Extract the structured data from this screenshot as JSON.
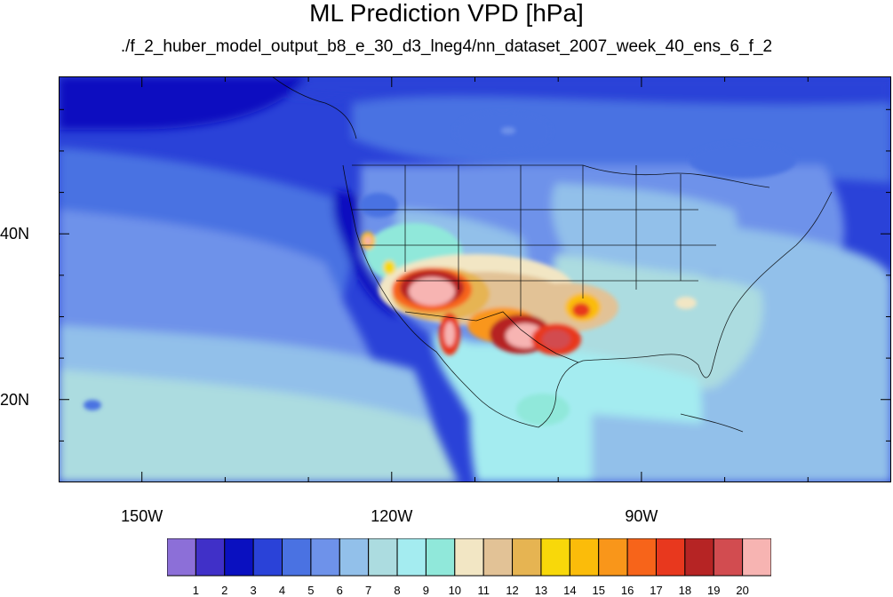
{
  "title": "ML Prediction VPD [hPa]",
  "subtitle": "./f_2_huber_model_output_b8_e_30_d3_lneg4/nn_dataset_2007_week_40_ens_6_f_2",
  "lat_labels": [
    {
      "text": "40N",
      "lat": 40
    },
    {
      "text": "20N",
      "lat": 20
    }
  ],
  "lon_labels": [
    {
      "text": "150W",
      "lon": -150
    },
    {
      "text": "120W",
      "lon": -120
    },
    {
      "text": "90W",
      "lon": -90
    }
  ],
  "colorbar": {
    "colors": [
      "#8c6fd8",
      "#4030c8",
      "#0a10c0",
      "#2a42d8",
      "#4a72e2",
      "#6e92ea",
      "#92c0ea",
      "#acdce0",
      "#a4ecf0",
      "#90e8da",
      "#f2e6c4",
      "#e2c296",
      "#e6b452",
      "#f8d80a",
      "#fbbc0a",
      "#f9961a",
      "#f7641a",
      "#e8381e",
      "#b62424",
      "#d24c50",
      "#f7b4b2"
    ],
    "labels": [
      "1",
      "2",
      "3",
      "4",
      "5",
      "6",
      "7",
      "8",
      "9",
      "10",
      "11",
      "12",
      "13",
      "14",
      "15",
      "16",
      "17",
      "18",
      "19",
      "20"
    ]
  },
  "chart_data": {
    "type": "heatmap",
    "title": "ML Prediction VPD [hPa]",
    "subtitle": "./f_2_huber_model_output_b8_e_30_d3_lneg4/nn_dataset_2007_week_40_ens_6_f_2",
    "lon_range": [
      -160,
      -60
    ],
    "lat_range": [
      10,
      59
    ],
    "colorbar_levels": [
      1,
      2,
      3,
      4,
      5,
      6,
      7,
      8,
      9,
      10,
      11,
      12,
      13,
      14,
      15,
      16,
      17,
      18,
      19,
      20
    ],
    "regions": [
      {
        "level": 3,
        "lon": [
          -144,
          -134
        ],
        "lat": [
          50,
          57
        ]
      },
      {
        "level": 4,
        "lon": [
          -120,
          -100
        ],
        "lat": [
          50,
          58
        ]
      },
      {
        "level": 3,
        "lon": [
          -132,
          -121
        ],
        "lat": [
          34,
          42
        ]
      },
      {
        "level": 5,
        "lon": [
          -145,
          -127
        ],
        "lat": [
          40,
          49
        ]
      },
      {
        "level": 6,
        "lon": [
          -160,
          -140
        ],
        "lat": [
          29,
          37
        ]
      },
      {
        "level": 8,
        "lon": [
          -160,
          -120
        ],
        "lat": [
          10,
          25
        ]
      },
      {
        "level": 7,
        "lon": [
          -100,
          -70
        ],
        "lat": [
          40,
          45
        ]
      },
      {
        "level": 8,
        "lon": [
          -90,
          -70
        ],
        "lat": [
          24,
          35
        ]
      },
      {
        "level": 12,
        "lon": [
          -113,
          -100
        ],
        "lat": [
          32,
          35
        ]
      },
      {
        "level": 20,
        "lon": [
          -118,
          -113
        ],
        "lat": [
          31,
          36
        ]
      },
      {
        "level": 20,
        "lon": [
          -107,
          -101
        ],
        "lat": [
          27,
          31
        ]
      },
      {
        "level": 18,
        "lon": [
          -106,
          -98
        ],
        "lat": [
          26,
          30
        ]
      },
      {
        "level": 15,
        "lon": [
          -98,
          -94
        ],
        "lat": [
          30,
          34
        ]
      },
      {
        "level": 11,
        "lon": [
          -90,
          -85
        ],
        "lat": [
          30,
          33
        ]
      }
    ]
  }
}
